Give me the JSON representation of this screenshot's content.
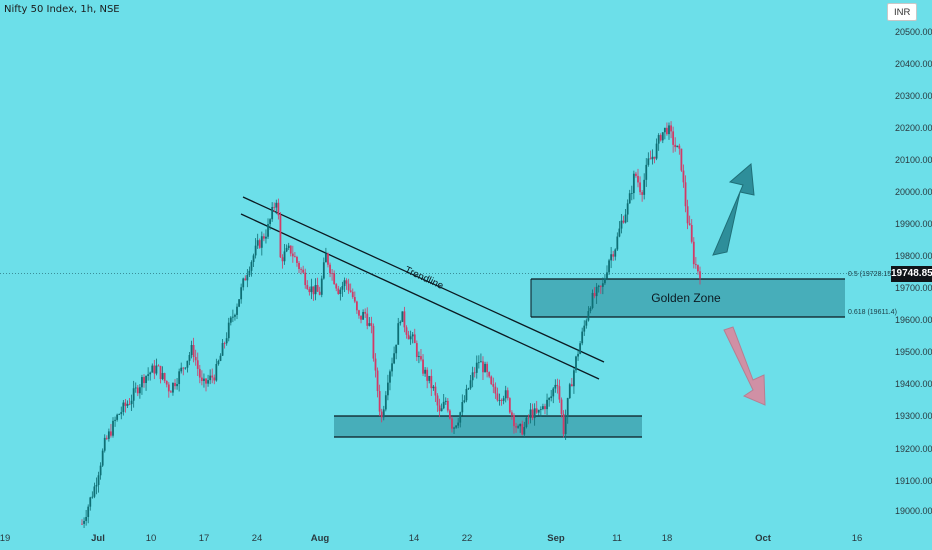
{
  "header": {
    "title": "Nifty 50 Index, 1h, NSE",
    "currency": "INR"
  },
  "current_price": {
    "label": "19748.85"
  },
  "chart_data": {
    "type": "candlestick",
    "y_axis": {
      "ticks": [
        "19000.00",
        "19100.00",
        "19200.00",
        "19300.00",
        "19400.00",
        "19500.00",
        "19600.00",
        "19700.00",
        "19800.00",
        "19900.00",
        "20000.00",
        "20100.00",
        "20200.00",
        "20300.00",
        "20400.00",
        "20500.00"
      ],
      "range": [
        18965,
        20565
      ],
      "position": "right"
    },
    "x_axis": {
      "ticks": [
        "19",
        "Jul",
        "10",
        "17",
        "24",
        "Aug",
        "14",
        "22",
        "Sep",
        "11",
        "18",
        "Oct",
        "16"
      ],
      "bold_ticks": [
        "Jul",
        "Aug",
        "Sep",
        "Oct"
      ]
    },
    "colors": {
      "background": "#6cdfe9",
      "up": "#0e6e74",
      "down": "#d23a66",
      "zone_fill": "#44a9b5",
      "arrow_up": "#2e8e9a",
      "arrow_down": "#d68ca2"
    },
    "fib_levels": [
      {
        "label": "0.5 (19728.15)",
        "value": 19728.15
      },
      {
        "label": "0.618 (19611.4)",
        "value": 19611.4
      }
    ],
    "zones": [
      {
        "label": "Golden Zone",
        "top": 19728.15,
        "bottom": 19611.4
      },
      {
        "label": "",
        "top": 19300,
        "bottom": 19250
      }
    ],
    "annotations": [
      {
        "type": "trendline",
        "label": "Trendline"
      },
      {
        "type": "arrow",
        "direction": "up"
      },
      {
        "type": "arrow",
        "direction": "down"
      }
    ],
    "price_path": [
      [
        0,
        18960
      ],
      [
        4,
        19080
      ],
      [
        7,
        19210
      ],
      [
        11,
        19300
      ],
      [
        15,
        19350
      ],
      [
        19,
        19420
      ],
      [
        23,
        19450
      ],
      [
        27,
        19380
      ],
      [
        30,
        19430
      ],
      [
        34,
        19510
      ],
      [
        37,
        19390
      ],
      [
        41,
        19430
      ],
      [
        45,
        19570
      ],
      [
        48,
        19660
      ],
      [
        51,
        19760
      ],
      [
        54,
        19830
      ],
      [
        57,
        19880
      ],
      [
        60,
        19990
      ],
      [
        61,
        19790
      ],
      [
        64,
        19820
      ],
      [
        67,
        19760
      ],
      [
        70,
        19700
      ],
      [
        73,
        19680
      ],
      [
        75,
        19800
      ],
      [
        77,
        19740
      ],
      [
        79,
        19690
      ],
      [
        81,
        19720
      ],
      [
        83,
        19680
      ],
      [
        85,
        19600
      ],
      [
        87,
        19620
      ],
      [
        89,
        19560
      ],
      [
        90,
        19440
      ],
      [
        91,
        19370
      ],
      [
        92,
        19280
      ],
      [
        94,
        19420
      ],
      [
        96,
        19500
      ],
      [
        98,
        19620
      ],
      [
        100,
        19560
      ],
      [
        102,
        19530
      ],
      [
        104,
        19460
      ],
      [
        106,
        19420
      ],
      [
        108,
        19380
      ],
      [
        110,
        19300
      ],
      [
        112,
        19350
      ],
      [
        114,
        19260
      ],
      [
        116,
        19300
      ],
      [
        118,
        19360
      ],
      [
        120,
        19420
      ],
      [
        122,
        19470
      ],
      [
        124,
        19440
      ],
      [
        126,
        19380
      ],
      [
        128,
        19360
      ],
      [
        130,
        19370
      ],
      [
        132,
        19310
      ],
      [
        134,
        19250
      ],
      [
        136,
        19260
      ],
      [
        138,
        19310
      ],
      [
        140,
        19300
      ],
      [
        142,
        19330
      ],
      [
        144,
        19350
      ],
      [
        146,
        19420
      ],
      [
        148,
        19250
      ],
      [
        150,
        19380
      ],
      [
        152,
        19480
      ],
      [
        154,
        19560
      ],
      [
        156,
        19650
      ],
      [
        158,
        19680
      ],
      [
        160,
        19700
      ],
      [
        162,
        19790
      ],
      [
        164,
        19830
      ],
      [
        166,
        19910
      ],
      [
        168,
        19960
      ],
      [
        170,
        20060
      ],
      [
        172,
        20000
      ],
      [
        174,
        20090
      ],
      [
        176,
        20120
      ],
      [
        178,
        20180
      ],
      [
        180,
        20200
      ],
      [
        182,
        20150
      ],
      [
        184,
        20110
      ],
      [
        185,
        20010
      ],
      [
        186,
        19920
      ],
      [
        187,
        19870
      ],
      [
        188,
        19790
      ],
      [
        189,
        19760
      ],
      [
        190,
        19749
      ]
    ]
  }
}
